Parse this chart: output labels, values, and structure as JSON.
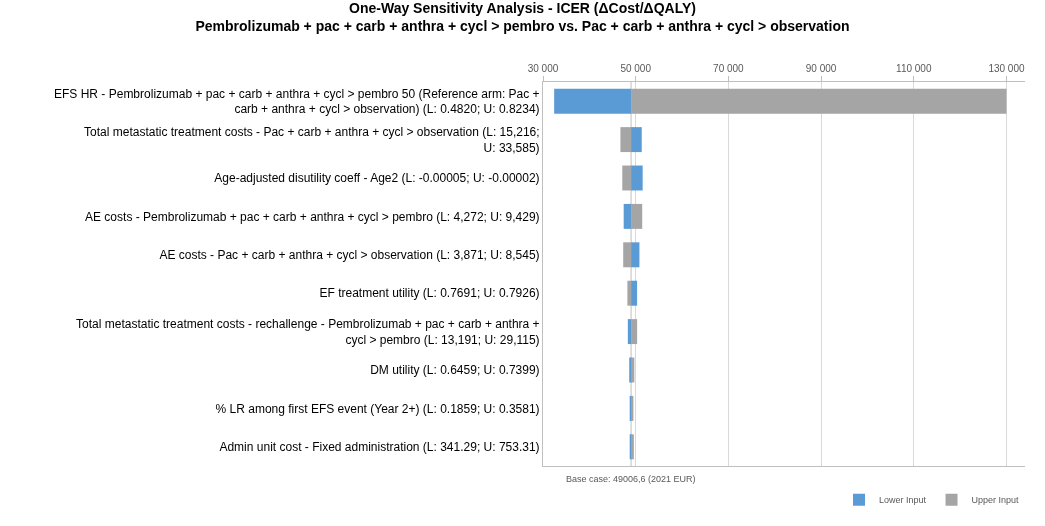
{
  "chart_data": {
    "type": "bar",
    "orientation": "horizontal",
    "title": "One-Way Sensitivity Analysis - ICER (ΔCost/ΔQALY)",
    "subtitle": "Pembrolizumab + pac + carb + anthra + cycl > pembro vs. Pac + carb + anthra + cycl > observation",
    "categories": [
      "EFS HR - Pembrolizumab + pac + carb + anthra + cycl > pembro 50 (Reference arm: Pac + carb + anthra + cycl > observation) (L: 0.4820; U: 0.8234)",
      "Total metastatic treatment costs - Pac + carb + anthra + cycl > observation (L: 15,216; U: 33,585)",
      "Age-adjusted disutility coeff - Age2 (L: -0.00005; U: -0.00002)",
      "AE costs - Pembrolizumab + pac + carb + anthra + cycl > pembro (L: 4,272; U: 9,429)",
      "AE costs - Pac + carb + anthra + cycl > observation (L: 3,871; U: 8,545)",
      "EF treatment utility (L: 0.7691; U: 0.7926)",
      "Total metastatic treatment costs - rechallenge - Pembrolizumab + pac + carb + anthra + cycl > pembro (L: 13,191; U: 29,115)",
      "DM utility (L: 0.6459; U: 0.7399)",
      "% LR among first EFS event (Year 2+) (L: 0.1859; U: 0.3581)",
      "Admin unit cost - Fixed administration (L: 341.29; U: 753.31)"
    ],
    "series": [
      {
        "name": "Lower Input",
        "color": "#5b9bd5",
        "base": [
          49006.6,
          49006.6,
          49006.6,
          49006.6,
          49006.6,
          49006.6,
          49006.6,
          49006.6,
          49006.6,
          49006.6
        ],
        "values": [
          -16600,
          2300,
          2500,
          -1600,
          1800,
          1300,
          -700,
          -400,
          -300,
          -300
        ]
      },
      {
        "name": "Upper Input",
        "color": "#a5a5a5",
        "base": [
          49006.6,
          49006.6,
          49006.6,
          49006.6,
          49006.6,
          49006.6,
          49006.6,
          49006.6,
          49006.6,
          49006.6
        ],
        "values": [
          81000,
          -2300,
          -1900,
          2400,
          -1700,
          -800,
          1300,
          700,
          500,
          600
        ]
      }
    ],
    "xlim": [
      30000,
      134000
    ],
    "xticks": [
      {
        "value": 30000,
        "label": "30 000"
      },
      {
        "value": 50000,
        "label": "50 000"
      },
      {
        "value": 70000,
        "label": "70 000"
      },
      {
        "value": 90000,
        "label": "90 000"
      },
      {
        "value": 110000,
        "label": "110 000"
      },
      {
        "value": 130000,
        "label": "130 000"
      }
    ],
    "ref_lines": [
      {
        "axis": "x",
        "value": 49006.6,
        "label": "Base case: 49006,6 (2021 EUR)",
        "color": "#bfbfbf"
      }
    ],
    "grid": "x",
    "legend": "bottom right"
  }
}
